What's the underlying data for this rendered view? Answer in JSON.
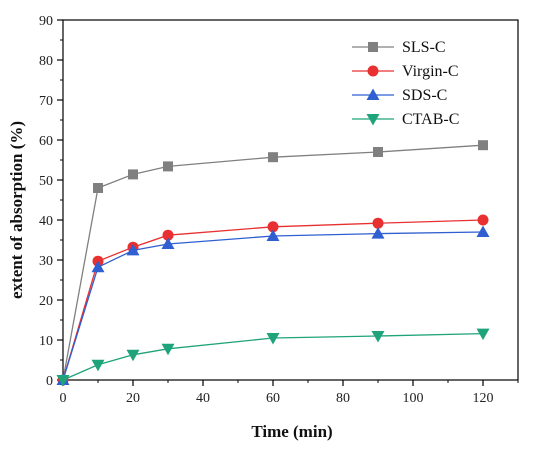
{
  "chart_data": {
    "type": "line",
    "title": "",
    "xlabel": "Time (min)",
    "ylabel": "extent of absorption (%)",
    "xlim": [
      0,
      130
    ],
    "ylim": [
      0,
      90
    ],
    "xticks": [
      0,
      20,
      40,
      60,
      80,
      100,
      120
    ],
    "yticks": [
      0,
      10,
      20,
      30,
      40,
      50,
      60,
      70,
      80,
      90
    ],
    "grid": false,
    "legend_position": "top-right",
    "x": [
      0,
      10,
      20,
      30,
      60,
      90,
      120
    ],
    "series": [
      {
        "name": "SLS-C",
        "values": [
          0,
          48,
          51.4,
          53.4,
          55.7,
          57,
          58.7
        ],
        "color": "#808080",
        "marker": "square"
      },
      {
        "name": "Virgin-C",
        "values": [
          0,
          29.7,
          33.2,
          36.2,
          38.3,
          39.2,
          40
        ],
        "color": "#e83030",
        "marker": "circle"
      },
      {
        "name": "SDS-C",
        "values": [
          0,
          28.2,
          32.4,
          34,
          36,
          36.6,
          37
        ],
        "color": "#2f5fd0",
        "marker": "triangle-up"
      },
      {
        "name": "CTAB-C",
        "values": [
          0,
          3.8,
          6.3,
          7.8,
          10.5,
          11,
          11.6
        ],
        "color": "#1fa37a",
        "marker": "triangle-down"
      }
    ]
  }
}
